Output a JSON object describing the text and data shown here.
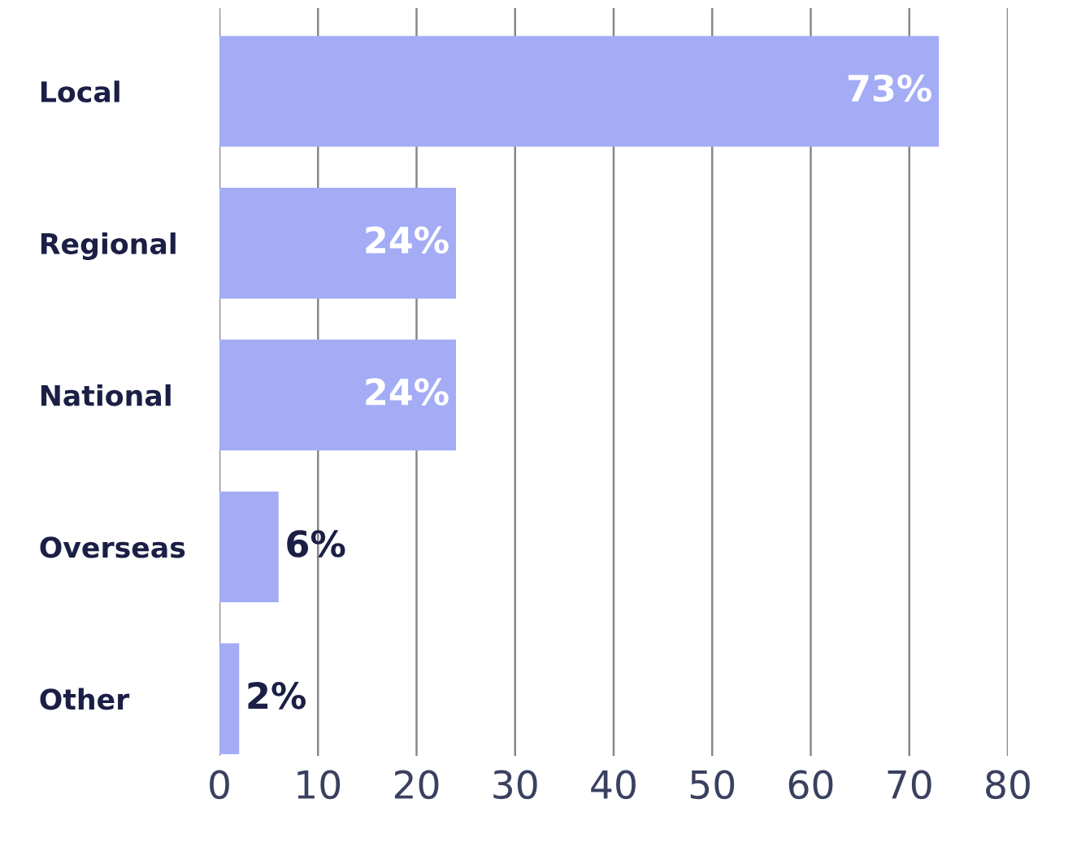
{
  "chart_data": {
    "type": "bar",
    "orientation": "horizontal",
    "categories": [
      "Local",
      "Regional",
      "National",
      "Overseas",
      "Other"
    ],
    "values": [
      73,
      24,
      24,
      6,
      2
    ],
    "value_labels": [
      "73%",
      "24%",
      "24%",
      "6%",
      "2%"
    ],
    "color": "#a3acf5",
    "xlim": [
      0,
      80
    ],
    "xticks": [
      0,
      10,
      20,
      30,
      40,
      50,
      60,
      70,
      80
    ],
    "grid": "x"
  }
}
